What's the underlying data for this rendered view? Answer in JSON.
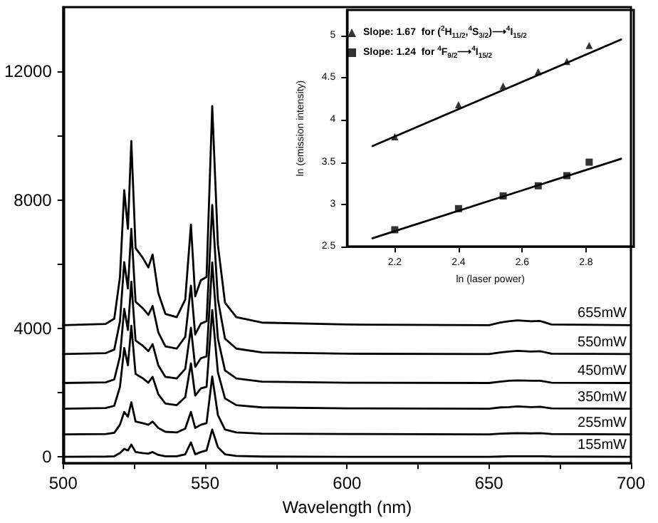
{
  "chart_data": [
    {
      "type": "line",
      "xlabel": "Wavelength (nm)",
      "x": [
        500,
        515,
        518,
        520,
        521.5,
        522.8,
        524,
        525.5,
        528,
        530,
        531.5,
        533.5,
        536,
        540,
        543,
        545,
        546.5,
        548.5,
        550.5,
        552.5,
        554.5,
        557,
        561,
        570,
        600,
        650,
        654,
        657,
        660,
        665,
        668,
        672,
        700
      ],
      "series": [
        {
          "name": "655mW",
          "color": "#000000",
          "values": [
            4100,
            4140,
            4300,
            5600,
            8300,
            7100,
            9830,
            6500,
            6200,
            5900,
            6300,
            5100,
            4450,
            4350,
            4900,
            7230,
            5000,
            5500,
            5600,
            10920,
            6600,
            4800,
            4350,
            4180,
            4120,
            4100,
            4180,
            4220,
            4250,
            4220,
            4230,
            4120,
            4100
          ]
        },
        {
          "name": "550mW",
          "color": "#000000",
          "values": [
            3200,
            3230,
            3340,
            4220,
            6060,
            5240,
            7100,
            4830,
            4630,
            4420,
            4700,
            3880,
            3440,
            3370,
            3740,
            5330,
            3810,
            4150,
            4220,
            7840,
            4900,
            3680,
            3370,
            3250,
            3210,
            3200,
            3250,
            3280,
            3300,
            3280,
            3290,
            3210,
            3200
          ]
        },
        {
          "name": "450mW",
          "color": "#000000",
          "values": [
            2300,
            2320,
            2410,
            3130,
            4610,
            3950,
            5450,
            3620,
            3460,
            3290,
            3510,
            2850,
            2490,
            2440,
            2740,
            4020,
            2800,
            3070,
            3130,
            6050,
            3680,
            2690,
            2440,
            2340,
            2310,
            2300,
            2340,
            2370,
            2380,
            2370,
            2370,
            2310,
            2300
          ]
        },
        {
          "name": "350mW",
          "color": "#000000",
          "values": [
            1500,
            1520,
            1590,
            2180,
            3390,
            2850,
            4080,
            2580,
            2450,
            2310,
            2490,
            1950,
            1660,
            1610,
            1860,
            2910,
            1910,
            2130,
            2180,
            4570,
            2630,
            1820,
            1610,
            1540,
            1510,
            1500,
            1540,
            1550,
            1570,
            1550,
            1560,
            1510,
            1500
          ]
        },
        {
          "name": "255mW",
          "color": "#000000",
          "values": [
            700,
            710,
            750,
            1000,
            1400,
            1250,
            1700,
            1100,
            1050,
            1000,
            1100,
            900,
            780,
            760,
            880,
            1400,
            900,
            1000,
            1050,
            2500,
            1300,
            850,
            760,
            720,
            710,
            700,
            720,
            730,
            740,
            730,
            740,
            710,
            700
          ]
        },
        {
          "name": "155mW",
          "color": "#000000",
          "values": [
            0,
            10,
            20,
            120,
            250,
            200,
            380,
            150,
            120,
            100,
            150,
            60,
            20,
            20,
            80,
            450,
            80,
            150,
            200,
            850,
            300,
            80,
            30,
            10,
            0,
            0,
            10,
            20,
            20,
            20,
            20,
            10,
            0
          ]
        }
      ],
      "xlim": [
        500,
        700
      ],
      "xticks": [
        500,
        {
          "value": 525,
          "label": null
        },
        550,
        {
          "value": 575,
          "label": null
        },
        600,
        {
          "value": 625,
          "label": null
        },
        650,
        {
          "value": 675,
          "label": null
        },
        700
      ],
      "ylim": [
        -200,
        14000
      ],
      "yticks": [
        0,
        {
          "value": 2000,
          "label": null
        },
        4000,
        {
          "value": 6000,
          "label": null
        },
        8000,
        {
          "value": 10000,
          "label": null
        },
        12000
      ],
      "marker": "none",
      "line_style": "solid",
      "legend": false,
      "grid": false
    },
    {
      "type": "scatter",
      "xlabel": "ln (laser power)",
      "ylabel": "ln (emission intensity)",
      "series": [
        {
          "name": "Slope: 1.67  for ($^{2}$H$_{11/2}$,$^{4}$S$_{3/2}$)⟶$^{4}$I$_{15/2}$",
          "color": "#000000",
          "marker": "triangle",
          "x": [
            2.2,
            2.4,
            2.54,
            2.65,
            2.74,
            2.81
          ],
          "values": [
            3.8,
            4.18,
            4.4,
            4.57,
            4.69,
            4.88
          ]
        },
        {
          "name": "Slope: 1.24  for $^{4}$F$_{9/2}$⟶$^{4}$I$_{15/2}$",
          "color": "#000000",
          "marker": "square",
          "x": [
            2.2,
            2.4,
            2.54,
            2.65,
            2.74,
            2.81
          ],
          "values": [
            2.7,
            2.95,
            3.1,
            3.22,
            3.34,
            3.5
          ]
        },
        {
          "type": "line",
          "color": "#000000",
          "x": [
            2.13,
            2.91
          ],
          "values": [
            3.69,
            4.95
          ]
        },
        {
          "type": "line",
          "color": "#000000",
          "x": [
            2.13,
            2.91
          ],
          "values": [
            2.6,
            3.54
          ]
        }
      ],
      "xlim": [
        2.05,
        2.95
      ],
      "xticks": [
        2.2,
        2.4,
        2.6,
        2.8
      ],
      "ylim": [
        2.5,
        5.3
      ],
      "yticks": [
        2.5,
        3.0,
        3.5,
        4.0,
        4.5,
        5.0
      ],
      "legend": "top left",
      "grid": false
    }
  ]
}
